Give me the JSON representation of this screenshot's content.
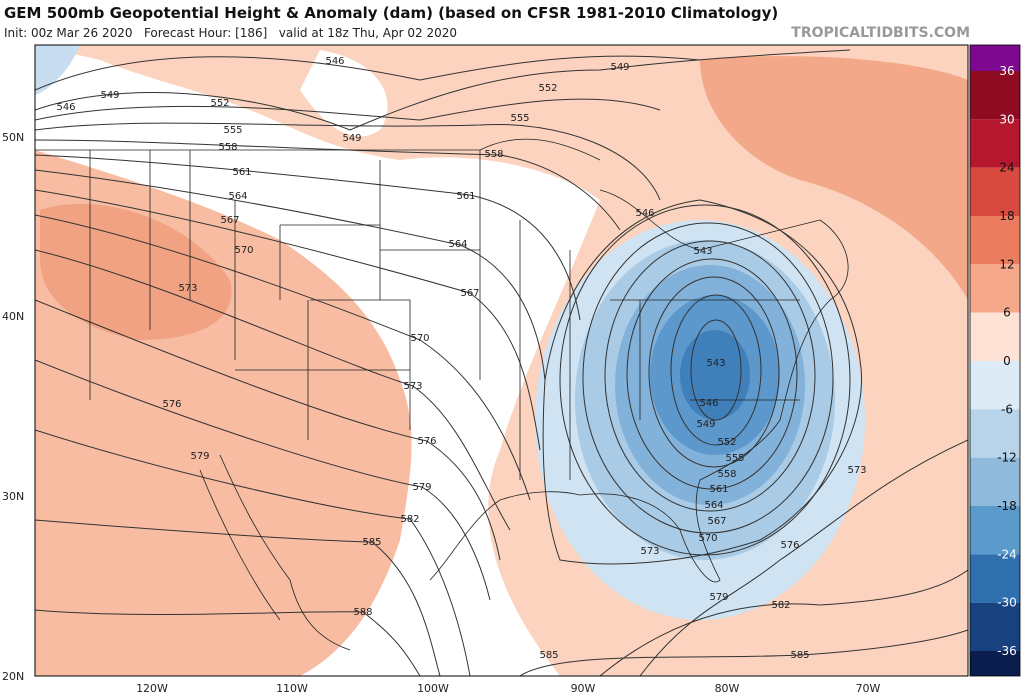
{
  "header": {
    "title": "GEM 500mb Geopotential Height & Anomaly (dam) (based on CFSR 1981-2010 Climatology)",
    "subtitle": "Init: 00z Mar 26 2020   Forecast Hour: [186]   valid at 18z Thu, Apr 02 2020",
    "site": "TROPICALTIDBITS.COM"
  },
  "map": {
    "lat_labels": [
      "50N",
      "40N",
      "30N",
      "20N"
    ],
    "lon_labels": [
      "120W",
      "110W",
      "100W",
      "90W",
      "80W",
      "70W"
    ],
    "contour_labels": [
      546,
      549,
      546,
      549,
      552,
      552,
      555,
      555,
      558,
      558,
      549,
      561,
      561,
      564,
      564,
      567,
      567,
      570,
      570,
      573,
      573,
      576,
      576,
      579,
      579,
      582,
      585,
      588,
      585,
      585,
      546,
      543,
      543,
      546,
      549,
      552,
      555,
      558,
      561,
      564,
      567,
      570,
      573,
      576,
      579,
      582,
      573
    ],
    "colorbar": {
      "labels": [
        "36",
        "30",
        "24",
        "18",
        "12",
        "6",
        "0",
        "-6",
        "-12",
        "-18",
        "-24",
        "-30",
        "-36"
      ],
      "colors": [
        "#7d0a8e",
        "#8e0b22",
        "#b5172e",
        "#d8493f",
        "#ec7c5e",
        "#f6a98a",
        "#fde2d5",
        "#dcebf6",
        "#b7d4ea",
        "#8fbadb",
        "#5b9bcb",
        "#2f6fae",
        "#18427f",
        "#0b1d4d"
      ]
    }
  }
}
